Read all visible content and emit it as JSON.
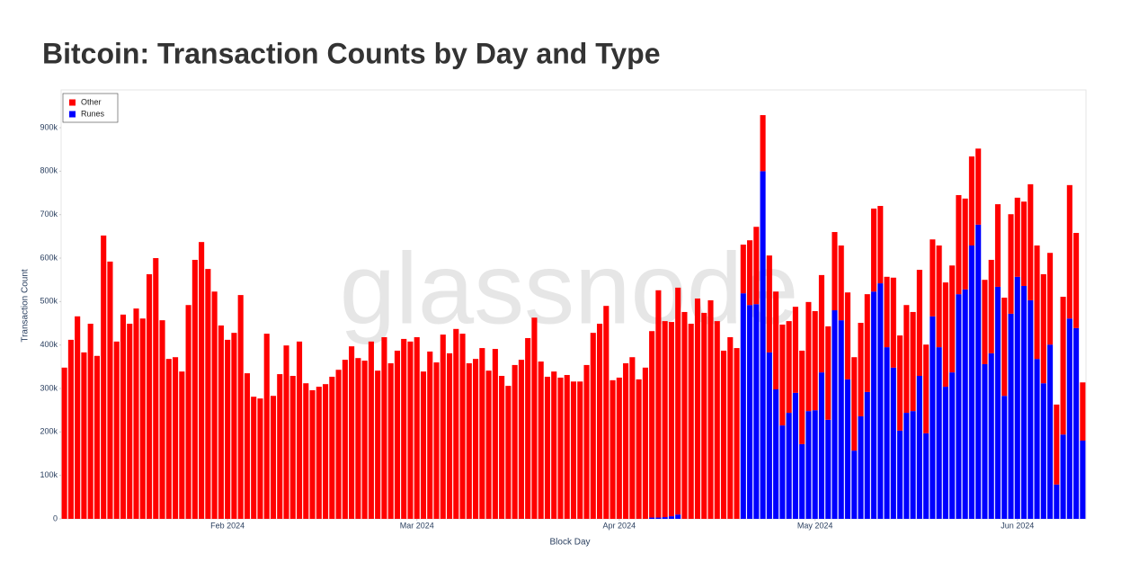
{
  "chart_data": {
    "type": "stacked_bar",
    "title": "Bitcoin: Transaction Counts by Day and Type",
    "watermark": "glassnode",
    "x_label": "Block Day",
    "y_label": "Transaction Count",
    "legend": "top-left",
    "x": [
      "2024-01-07",
      "2024-01-08",
      "2024-01-09",
      "2024-01-10",
      "2024-01-11",
      "2024-01-12",
      "2024-01-13",
      "2024-01-14",
      "2024-01-15",
      "2024-01-16",
      "2024-01-17",
      "2024-01-18",
      "2024-01-19",
      "2024-01-20",
      "2024-01-21",
      "2024-01-22",
      "2024-01-23",
      "2024-01-24",
      "2024-01-25",
      "2024-01-26",
      "2024-01-27",
      "2024-01-28",
      "2024-01-29",
      "2024-01-30",
      "2024-01-31",
      "2024-02-01",
      "2024-02-02",
      "2024-02-03",
      "2024-02-04",
      "2024-02-05",
      "2024-02-06",
      "2024-02-07",
      "2024-02-08",
      "2024-02-09",
      "2024-02-10",
      "2024-02-11",
      "2024-02-12",
      "2024-02-13",
      "2024-02-14",
      "2024-02-15",
      "2024-02-16",
      "2024-02-17",
      "2024-02-18",
      "2024-02-19",
      "2024-02-20",
      "2024-02-21",
      "2024-02-22",
      "2024-02-23",
      "2024-02-24",
      "2024-02-25",
      "2024-02-26",
      "2024-02-27",
      "2024-02-28",
      "2024-02-29",
      "2024-03-01",
      "2024-03-02",
      "2024-03-03",
      "2024-03-04",
      "2024-03-05",
      "2024-03-06",
      "2024-03-07",
      "2024-03-08",
      "2024-03-09",
      "2024-03-10",
      "2024-03-11",
      "2024-03-12",
      "2024-03-13",
      "2024-03-14",
      "2024-03-15",
      "2024-03-16",
      "2024-03-17",
      "2024-03-18",
      "2024-03-19",
      "2024-03-20",
      "2024-03-21",
      "2024-03-22",
      "2024-03-23",
      "2024-03-24",
      "2024-03-25",
      "2024-03-26",
      "2024-03-27",
      "2024-03-28",
      "2024-03-29",
      "2024-03-30",
      "2024-03-31",
      "2024-04-01",
      "2024-04-02",
      "2024-04-03",
      "2024-04-04",
      "2024-04-05",
      "2024-04-06",
      "2024-04-07",
      "2024-04-08",
      "2024-04-09",
      "2024-04-10",
      "2024-04-11",
      "2024-04-12",
      "2024-04-13",
      "2024-04-14",
      "2024-04-15",
      "2024-04-16",
      "2024-04-17",
      "2024-04-18",
      "2024-04-19",
      "2024-04-20",
      "2024-04-21",
      "2024-04-22",
      "2024-04-23",
      "2024-04-24",
      "2024-04-25",
      "2024-04-26",
      "2024-04-27",
      "2024-04-28",
      "2024-04-29",
      "2024-04-30",
      "2024-05-01",
      "2024-05-02",
      "2024-05-03",
      "2024-05-04",
      "2024-05-05",
      "2024-05-06",
      "2024-05-07",
      "2024-05-08",
      "2024-05-09",
      "2024-05-10",
      "2024-05-11",
      "2024-05-12",
      "2024-05-13",
      "2024-05-14",
      "2024-05-15",
      "2024-05-16",
      "2024-05-17",
      "2024-05-18",
      "2024-05-19",
      "2024-05-20",
      "2024-05-21",
      "2024-05-22",
      "2024-05-23",
      "2024-05-24",
      "2024-05-25",
      "2024-05-26",
      "2024-05-27",
      "2024-05-28",
      "2024-05-29",
      "2024-05-30",
      "2024-05-31",
      "2024-06-01",
      "2024-06-02",
      "2024-06-03",
      "2024-06-04",
      "2024-06-05",
      "2024-06-06",
      "2024-06-07",
      "2024-06-08",
      "2024-06-09",
      "2024-06-10",
      "2024-06-11"
    ],
    "series": [
      {
        "name": "Other",
        "color": "#ff0000",
        "values": [
          348000,
          412000,
          466000,
          383000,
          449000,
          375000,
          652000,
          592000,
          408000,
          470000,
          449000,
          484000,
          461000,
          563000,
          600000,
          457000,
          368000,
          372000,
          339000,
          492000,
          596000,
          637000,
          575000,
          523000,
          445000,
          412000,
          428000,
          515000,
          335000,
          281000,
          277000,
          426000,
          283000,
          333000,
          399000,
          329000,
          408000,
          312000,
          296000,
          304000,
          310000,
          327000,
          343000,
          366000,
          397000,
          370000,
          364000,
          408000,
          341000,
          418000,
          358000,
          387000,
          414000,
          408000,
          418000,
          339000,
          385000,
          360000,
          424000,
          381000,
          437000,
          426000,
          358000,
          368000,
          393000,
          341000,
          391000,
          329000,
          306000,
          354000,
          366000,
          416000,
          463000,
          362000,
          327000,
          339000,
          325000,
          331000,
          316000,
          316000,
          354000,
          428000,
          449000,
          490000,
          319000,
          325000,
          358000,
          372000,
          321000,
          348000,
          429000,
          523000,
          451000,
          447000,
          522000,
          476000,
          449000,
          507000,
          474000,
          503000,
          455000,
          387000,
          418000,
          393000,
          112000,
          149000,
          178000,
          129000,
          223000,
          225000,
          232000,
          211000,
          198000,
          215000,
          251000,
          228000,
          224000,
          215000,
          180000,
          172000,
          200000,
          215000,
          215000,
          225000,
          191000,
          178000,
          162000,
          207000,
          219000,
          248000,
          228000,
          244000,
          204000,
          177000,
          234000,
          240000,
          246000,
          228000,
          209000,
          205000,
          175000,
          194000,
          215000,
          190000,
          226000,
          229000,
          182000,
          194000,
          267000,
          261000,
          251000,
          211000,
          184000,
          317000,
          307000,
          219000,
          134000
        ]
      },
      {
        "name": "Runes",
        "color": "#0000ff",
        "values": [
          0,
          0,
          0,
          0,
          0,
          0,
          0,
          0,
          0,
          0,
          0,
          0,
          0,
          0,
          0,
          0,
          0,
          0,
          0,
          0,
          0,
          0,
          0,
          0,
          0,
          0,
          0,
          0,
          0,
          0,
          0,
          0,
          0,
          0,
          0,
          0,
          0,
          0,
          0,
          0,
          0,
          0,
          0,
          0,
          0,
          0,
          0,
          0,
          0,
          0,
          0,
          0,
          0,
          0,
          0,
          0,
          0,
          0,
          0,
          0,
          0,
          0,
          0,
          0,
          0,
          0,
          0,
          0,
          0,
          0,
          0,
          0,
          0,
          0,
          0,
          0,
          0,
          0,
          0,
          0,
          0,
          0,
          0,
          0,
          0,
          0,
          0,
          0,
          0,
          0,
          3000,
          3000,
          4000,
          6000,
          10000,
          0,
          0,
          0,
          0,
          0,
          0,
          0,
          0,
          0,
          519000,
          492000,
          494000,
          800000,
          383000,
          298000,
          215000,
          244000,
          290000,
          172000,
          248000,
          250000,
          337000,
          228000,
          480000,
          457000,
          321000,
          157000,
          236000,
          292000,
          523000,
          542000,
          395000,
          348000,
          203000,
          244000,
          248000,
          329000,
          197000,
          466000,
          395000,
          304000,
          337000,
          517000,
          528000,
          629000,
          677000,
          356000,
          381000,
          534000,
          283000,
          472000,
          557000,
          536000,
          503000,
          368000,
          312000,
          401000,
          79000,
          194000,
          461000,
          439000,
          180000
        ]
      }
    ],
    "xlim": [
      "2024-01-06T12:00",
      "2024-06-11T12:00"
    ],
    "xticks": [
      {
        "value": "2024-02-01",
        "label": "Feb 2024"
      },
      {
        "value": "2024-03-01",
        "label": "Mar 2024"
      },
      {
        "value": "2024-04-01",
        "label": "Apr 2024"
      },
      {
        "value": "2024-05-01",
        "label": "May 2024"
      },
      {
        "value": "2024-06-01",
        "label": "Jun 2024"
      }
    ],
    "ylim": [
      0,
      987000
    ],
    "yticks": [
      0,
      {
        "value": 100000,
        "label": "100k"
      },
      {
        "value": 200000,
        "label": "200k"
      },
      {
        "value": 300000,
        "label": "300k"
      },
      {
        "value": 400000,
        "label": "400k"
      },
      {
        "value": 500000,
        "label": "500k"
      },
      {
        "value": 600000,
        "label": "600k"
      },
      {
        "value": 700000,
        "label": "700k"
      },
      {
        "value": 800000,
        "label": "800k"
      },
      {
        "value": 900000,
        "label": "900k"
      }
    ],
    "grid": false
  }
}
